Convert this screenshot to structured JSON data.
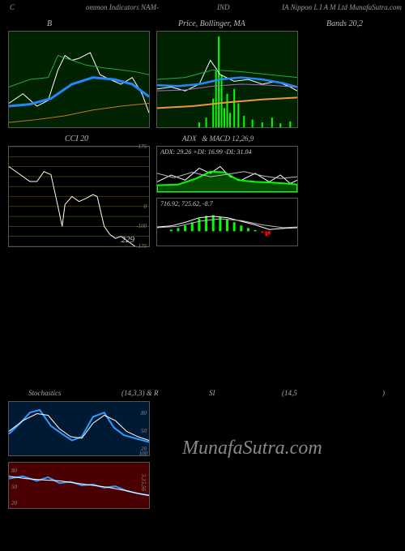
{
  "header": {
    "c": "C",
    "mid": "ommon Indicators NAM-",
    "ind": "IND",
    "right": "IA Nippon L I A M Ltd MunafaSutra.com"
  },
  "titles": {
    "b": "B",
    "price": "Price, Bollinger, MA",
    "bands": "Bands 20,2",
    "cci": "CCI 20",
    "adx": "ADX: 29.26   +DI: 16.99 -DI: 31.04",
    "macd": "716.92,  725.62,  -8.7"
  },
  "stoch_row": {
    "stoch": "Stochastics",
    "n1": "(14,3,3) & R",
    "si": "SI",
    "n2": "(14,5",
    "paren": ")"
  },
  "watermark": "MunafaSutra.com",
  "cci": {
    "ticks": [
      "175",
      "",
      "",
      "",
      "",
      "",
      "0",
      "",
      "-100",
      "",
      "-175"
    ],
    "final": "229",
    "line": [
      [
        0,
        20
      ],
      [
        5,
        25
      ],
      [
        10,
        30
      ],
      [
        15,
        35
      ],
      [
        20,
        35
      ],
      [
        25,
        25
      ],
      [
        30,
        28
      ],
      [
        35,
        60
      ],
      [
        38,
        80
      ],
      [
        40,
        58
      ],
      [
        45,
        50
      ],
      [
        50,
        55
      ],
      [
        55,
        52
      ],
      [
        60,
        48
      ],
      [
        63,
        50
      ],
      [
        68,
        80
      ],
      [
        72,
        88
      ],
      [
        76,
        92
      ],
      [
        80,
        90
      ],
      [
        85,
        95
      ],
      [
        90,
        100
      ],
      [
        95,
        110
      ],
      [
        100,
        118
      ]
    ],
    "grid_color": "#6a5a00"
  },
  "bollinger": {
    "bg": "#002200",
    "series": [
      {
        "color": "#ffffff",
        "w": 1,
        "pts": [
          [
            0,
            75
          ],
          [
            10,
            65
          ],
          [
            20,
            78
          ],
          [
            28,
            72
          ],
          [
            35,
            40
          ],
          [
            40,
            25
          ],
          [
            45,
            30
          ],
          [
            50,
            28
          ],
          [
            58,
            22
          ],
          [
            65,
            45
          ],
          [
            72,
            50
          ],
          [
            80,
            55
          ],
          [
            88,
            48
          ],
          [
            95,
            65
          ],
          [
            100,
            85
          ]
        ]
      },
      {
        "color": "#2288ff",
        "w": 3,
        "pts": [
          [
            0,
            78
          ],
          [
            15,
            76
          ],
          [
            30,
            70
          ],
          [
            45,
            55
          ],
          [
            60,
            48
          ],
          [
            75,
            50
          ],
          [
            88,
            55
          ],
          [
            100,
            68
          ]
        ]
      },
      {
        "color": "#22aa44",
        "w": 1,
        "pts": [
          [
            0,
            58
          ],
          [
            15,
            50
          ],
          [
            28,
            48
          ],
          [
            35,
            25
          ],
          [
            45,
            30
          ],
          [
            55,
            35
          ],
          [
            68,
            38
          ],
          [
            80,
            40
          ],
          [
            90,
            42
          ],
          [
            100,
            45
          ]
        ]
      },
      {
        "color": "#cc7722",
        "w": 1,
        "pts": [
          [
            0,
            95
          ],
          [
            20,
            92
          ],
          [
            40,
            88
          ],
          [
            60,
            82
          ],
          [
            80,
            78
          ],
          [
            100,
            75
          ]
        ]
      }
    ]
  },
  "price_ma": {
    "bg": "#002200",
    "series": [
      {
        "color": "#ffffff",
        "w": 1,
        "pts": [
          [
            0,
            60
          ],
          [
            10,
            58
          ],
          [
            20,
            62
          ],
          [
            30,
            55
          ],
          [
            38,
            30
          ],
          [
            45,
            45
          ],
          [
            55,
            52
          ],
          [
            65,
            50
          ],
          [
            75,
            55
          ],
          [
            85,
            52
          ],
          [
            95,
            58
          ],
          [
            100,
            62
          ]
        ]
      },
      {
        "color": "#2288ff",
        "w": 2.5,
        "pts": [
          [
            0,
            56
          ],
          [
            15,
            57
          ],
          [
            30,
            55
          ],
          [
            45,
            50
          ],
          [
            60,
            48
          ],
          [
            75,
            50
          ],
          [
            90,
            54
          ],
          [
            100,
            58
          ]
        ]
      },
      {
        "color": "#22aa44",
        "w": 1,
        "pts": [
          [
            0,
            50
          ],
          [
            20,
            48
          ],
          [
            40,
            40
          ],
          [
            60,
            42
          ],
          [
            80,
            45
          ],
          [
            100,
            48
          ]
        ]
      },
      {
        "color": "#aa66cc",
        "w": 1,
        "pts": [
          [
            0,
            62
          ],
          [
            20,
            61
          ],
          [
            40,
            57
          ],
          [
            60,
            55
          ],
          [
            80,
            56
          ],
          [
            100,
            58
          ]
        ]
      },
      {
        "color": "#ee9933",
        "w": 2,
        "pts": [
          [
            0,
            80
          ],
          [
            25,
            78
          ],
          [
            50,
            74
          ],
          [
            75,
            71
          ],
          [
            100,
            69
          ]
        ]
      }
    ],
    "bars": {
      "color": "#00ff00",
      "pts": [
        [
          30,
          5
        ],
        [
          35,
          10
        ],
        [
          40,
          30
        ],
        [
          42,
          60
        ],
        [
          44,
          95
        ],
        [
          46,
          55
        ],
        [
          48,
          20
        ],
        [
          50,
          35
        ],
        [
          52,
          15
        ],
        [
          55,
          40
        ],
        [
          58,
          25
        ],
        [
          62,
          12
        ],
        [
          68,
          8
        ],
        [
          75,
          5
        ],
        [
          82,
          10
        ],
        [
          88,
          4
        ],
        [
          95,
          6
        ]
      ]
    }
  },
  "adx_panel": {
    "series": [
      {
        "color": "#ffffff",
        "w": 1,
        "pts": [
          [
            0,
            70
          ],
          [
            10,
            50
          ],
          [
            20,
            65
          ],
          [
            30,
            30
          ],
          [
            38,
            45
          ],
          [
            45,
            25
          ],
          [
            52,
            55
          ],
          [
            60,
            65
          ],
          [
            70,
            45
          ],
          [
            80,
            70
          ],
          [
            88,
            50
          ],
          [
            95,
            75
          ],
          [
            100,
            65
          ]
        ]
      },
      {
        "color": "#00ff00",
        "w": 2,
        "fill": true,
        "pts": [
          [
            0,
            80
          ],
          [
            15,
            78
          ],
          [
            28,
            60
          ],
          [
            38,
            40
          ],
          [
            48,
            42
          ],
          [
            58,
            65
          ],
          [
            70,
            70
          ],
          [
            82,
            72
          ],
          [
            92,
            75
          ],
          [
            100,
            78
          ]
        ]
      },
      {
        "color": "#bbbbbb",
        "w": 1,
        "pts": [
          [
            0,
            45
          ],
          [
            12,
            58
          ],
          [
            25,
            42
          ],
          [
            38,
            55
          ],
          [
            50,
            48
          ],
          [
            62,
            40
          ],
          [
            75,
            52
          ],
          [
            88,
            60
          ],
          [
            100,
            55
          ]
        ]
      }
    ]
  },
  "macd_panel": {
    "hist": {
      "color": "#00ff00",
      "neg_color": "#ff0000",
      "pts": [
        [
          10,
          5
        ],
        [
          15,
          10
        ],
        [
          20,
          18
        ],
        [
          25,
          28
        ],
        [
          30,
          40
        ],
        [
          35,
          48
        ],
        [
          40,
          50
        ],
        [
          45,
          45
        ],
        [
          50,
          38
        ],
        [
          55,
          28
        ],
        [
          60,
          18
        ],
        [
          65,
          10
        ],
        [
          70,
          4
        ],
        [
          75,
          -5
        ],
        [
          78,
          -15
        ],
        [
          80,
          -10
        ]
      ]
    },
    "series": [
      {
        "color": "#ffffff",
        "w": 1,
        "pts": [
          [
            0,
            48
          ],
          [
            10,
            45
          ],
          [
            20,
            35
          ],
          [
            30,
            22
          ],
          [
            40,
            18
          ],
          [
            50,
            22
          ],
          [
            60,
            32
          ],
          [
            70,
            42
          ],
          [
            80,
            55
          ],
          [
            90,
            52
          ],
          [
            100,
            50
          ]
        ]
      },
      {
        "color": "#bbbbbb",
        "w": 1,
        "pts": [
          [
            0,
            50
          ],
          [
            15,
            46
          ],
          [
            30,
            32
          ],
          [
            45,
            25
          ],
          [
            60,
            30
          ],
          [
            75,
            42
          ],
          [
            90,
            50
          ],
          [
            100,
            48
          ]
        ]
      }
    ]
  },
  "stoch_blue": {
    "bg": "#001a33",
    "ticks": [
      "80",
      "50",
      "20",
      "100"
    ],
    "series": [
      {
        "color": "#3399ff",
        "w": 2,
        "pts": [
          [
            0,
            60
          ],
          [
            8,
            40
          ],
          [
            15,
            20
          ],
          [
            22,
            15
          ],
          [
            30,
            45
          ],
          [
            38,
            60
          ],
          [
            45,
            72
          ],
          [
            52,
            65
          ],
          [
            60,
            28
          ],
          [
            68,
            20
          ],
          [
            75,
            48
          ],
          [
            82,
            62
          ],
          [
            90,
            68
          ],
          [
            100,
            75
          ]
        ]
      },
      {
        "color": "#ffffff",
        "w": 1,
        "pts": [
          [
            0,
            55
          ],
          [
            10,
            35
          ],
          [
            20,
            22
          ],
          [
            28,
            25
          ],
          [
            36,
            50
          ],
          [
            44,
            65
          ],
          [
            52,
            68
          ],
          [
            60,
            40
          ],
          [
            68,
            25
          ],
          [
            76,
            35
          ],
          [
            84,
            55
          ],
          [
            92,
            65
          ],
          [
            100,
            72
          ]
        ]
      }
    ]
  },
  "stoch_red": {
    "bg": "#4a0000",
    "label": "5,15,56",
    "ticks": [
      "80",
      "50",
      "20"
    ],
    "series": [
      {
        "color": "#3399ff",
        "w": 2,
        "pts": [
          [
            0,
            35
          ],
          [
            10,
            30
          ],
          [
            20,
            40
          ],
          [
            28,
            32
          ],
          [
            36,
            45
          ],
          [
            44,
            42
          ],
          [
            52,
            50
          ],
          [
            60,
            48
          ],
          [
            68,
            55
          ],
          [
            76,
            52
          ],
          [
            84,
            62
          ],
          [
            92,
            68
          ],
          [
            100,
            72
          ]
        ]
      },
      {
        "color": "#ffffff",
        "w": 1,
        "pts": [
          [
            0,
            30
          ],
          [
            12,
            35
          ],
          [
            24,
            38
          ],
          [
            36,
            40
          ],
          [
            48,
            45
          ],
          [
            60,
            50
          ],
          [
            72,
            55
          ],
          [
            84,
            62
          ],
          [
            96,
            70
          ],
          [
            100,
            72
          ]
        ]
      }
    ]
  },
  "colors": {
    "border": "#555555",
    "text": "#cccccc"
  }
}
